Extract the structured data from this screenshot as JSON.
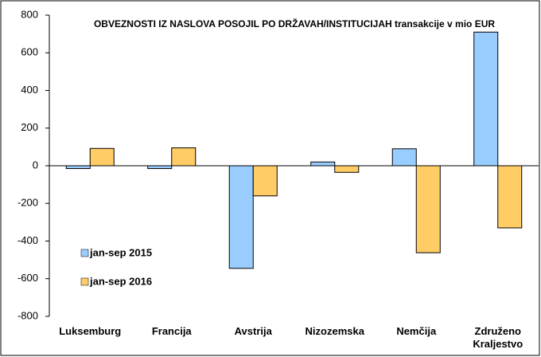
{
  "chart_data": {
    "type": "bar",
    "title": "OBVEZNOSTI IZ NASLOVA POSOJIL PO DRŽAVAH/INSTITUCIJAH transakcije v mio EUR",
    "categories": [
      "Luksemburg",
      "Francija",
      "Avstrija",
      "Nizozemska",
      "Nemčija",
      "Združeno Kraljestvo"
    ],
    "series": [
      {
        "name": "jan-sep 2015",
        "color": "#99ccff",
        "values": [
          -15,
          -15,
          -545,
          20,
          90,
          710
        ]
      },
      {
        "name": "jan-sep 2016",
        "color": "#ffcc66",
        "values": [
          92,
          95,
          -160,
          -35,
          -462,
          -330
        ]
      }
    ],
    "ylim": [
      -800,
      800
    ],
    "yticks": [
      -800,
      -600,
      -400,
      -200,
      0,
      200,
      400,
      600,
      800
    ],
    "grid": false,
    "legend": "left"
  }
}
